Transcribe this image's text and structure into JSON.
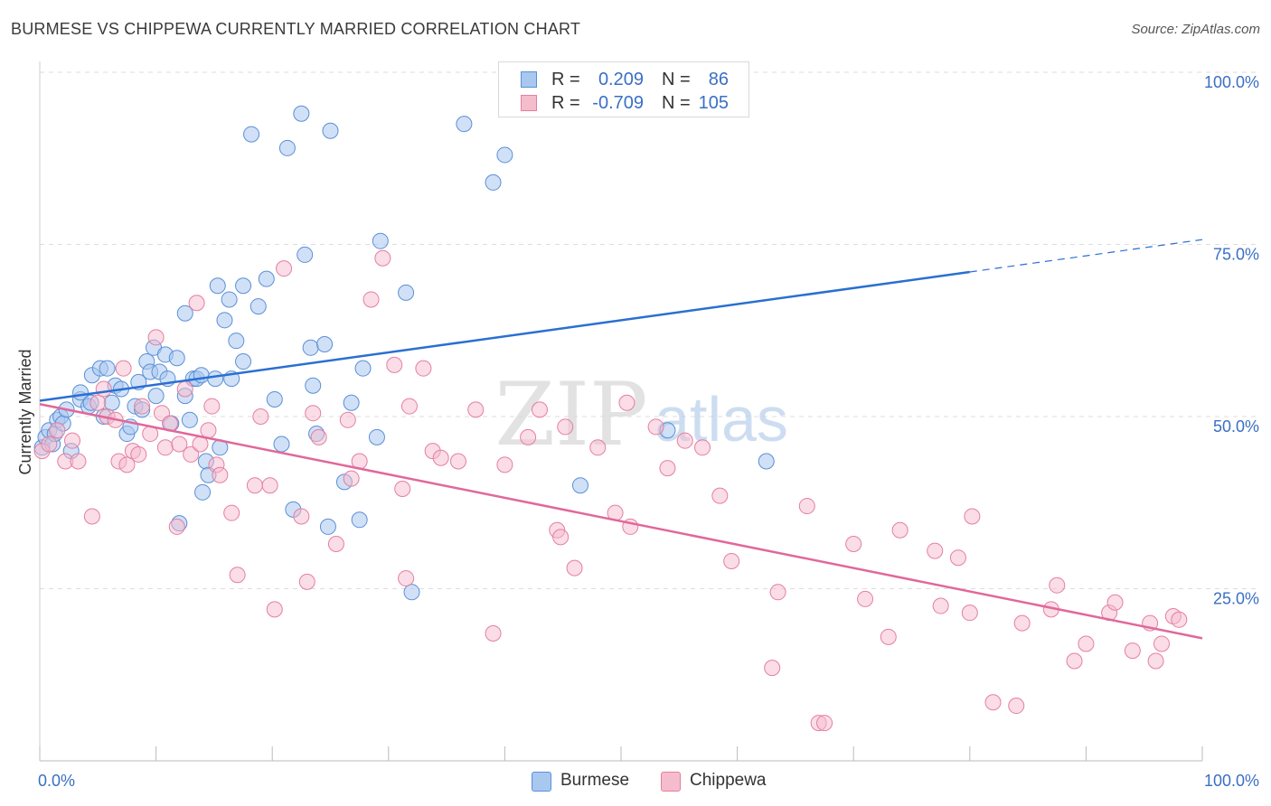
{
  "title": "BURMESE VS CHIPPEWA CURRENTLY MARRIED CORRELATION CHART",
  "source": "Source: ZipAtlas.com",
  "watermark": {
    "zip": "ZIP",
    "atlas": "atlas"
  },
  "legend": [
    {
      "r_label": "R =",
      "r_value": "0.209",
      "n_label": "N =",
      "n_value": "86"
    },
    {
      "r_label": "R =",
      "r_value": "-0.709",
      "n_label": "N =",
      "n_value": "105"
    }
  ],
  "colors": {
    "burmese_fill": "#a9c8f0",
    "burmese_stroke": "#5b8fd6",
    "burmese_line": "#2a6fd1",
    "chippewa_fill": "#f5bccd",
    "chippewa_stroke": "#e57fa0",
    "chippewa_line": "#e2679a",
    "value_text": "#3a6fc4",
    "grid": "#dddddd"
  },
  "chart_data": {
    "type": "scatter",
    "title": "BURMESE VS CHIPPEWA CURRENTLY MARRIED CORRELATION CHART",
    "xlabel": "",
    "ylabel": "Currently Married",
    "xlim": [
      0,
      100
    ],
    "ylim": [
      0,
      100
    ],
    "x_tick_labels": [
      "0.0%",
      "100.0%"
    ],
    "y_tick_values": [
      25,
      50,
      75,
      100
    ],
    "y_tick_labels": [
      "25.0%",
      "50.0%",
      "75.0%",
      "100.0%"
    ],
    "grid": "horizontal dashed",
    "legend_position": "top-center",
    "series": [
      {
        "name": "Burmese",
        "r": 0.209,
        "n": 86,
        "trend": {
          "x0": 0,
          "y0": 52.3,
          "x1": 80,
          "y1": 71.0,
          "dashed_to_x": 100,
          "dashed_to_y": 75.7
        },
        "points": [
          [
            0.2,
            45.5
          ],
          [
            0.5,
            47
          ],
          [
            0.8,
            48
          ],
          [
            1.1,
            46
          ],
          [
            1.3,
            47.5
          ],
          [
            1.5,
            49.5
          ],
          [
            1.8,
            50
          ],
          [
            2,
            49
          ],
          [
            2.3,
            51
          ],
          [
            2.7,
            45
          ],
          [
            3.5,
            52.5
          ],
          [
            3.5,
            53.5
          ],
          [
            4.2,
            51.5
          ],
          [
            4.4,
            52
          ],
          [
            4.5,
            56
          ],
          [
            5.2,
            57
          ],
          [
            5.5,
            50
          ],
          [
            5.8,
            57
          ],
          [
            6.2,
            52
          ],
          [
            6.5,
            54.5
          ],
          [
            7.0,
            54
          ],
          [
            7.5,
            47.5
          ],
          [
            7.8,
            48.5
          ],
          [
            8.2,
            51.5
          ],
          [
            8.5,
            55
          ],
          [
            8.8,
            51
          ],
          [
            9.2,
            58
          ],
          [
            9.5,
            56.5
          ],
          [
            9.8,
            60
          ],
          [
            10,
            53
          ],
          [
            10.3,
            56.5
          ],
          [
            10.8,
            59
          ],
          [
            11,
            55.5
          ],
          [
            11.3,
            49
          ],
          [
            11.8,
            58.5
          ],
          [
            12,
            34.5
          ],
          [
            12.5,
            53
          ],
          [
            12.5,
            65
          ],
          [
            12.9,
            49.5
          ],
          [
            13.2,
            55.5
          ],
          [
            13.5,
            55.5
          ],
          [
            13.9,
            56
          ],
          [
            14,
            39
          ],
          [
            14.3,
            43.5
          ],
          [
            14.5,
            41.5
          ],
          [
            15.1,
            55.5
          ],
          [
            15.3,
            69
          ],
          [
            15.5,
            45.5
          ],
          [
            15.9,
            64
          ],
          [
            16.3,
            67
          ],
          [
            16.5,
            55.5
          ],
          [
            16.9,
            61
          ],
          [
            17.5,
            69
          ],
          [
            17.5,
            58
          ],
          [
            18.2,
            91
          ],
          [
            18.8,
            66
          ],
          [
            19.5,
            70
          ],
          [
            20.2,
            52.5
          ],
          [
            20.8,
            46
          ],
          [
            21.3,
            89
          ],
          [
            21.8,
            36.5
          ],
          [
            22.5,
            94
          ],
          [
            22.8,
            73.5
          ],
          [
            23.3,
            60
          ],
          [
            23.5,
            54.5
          ],
          [
            23.8,
            47.5
          ],
          [
            24.5,
            60.5
          ],
          [
            24.8,
            34
          ],
          [
            25,
            91.5
          ],
          [
            26.2,
            40.5
          ],
          [
            26.8,
            52
          ],
          [
            27.5,
            35
          ],
          [
            27.8,
            57
          ],
          [
            29,
            47
          ],
          [
            29.3,
            75.5
          ],
          [
            31.5,
            68
          ],
          [
            32,
            24.5
          ],
          [
            36.5,
            92.5
          ],
          [
            39,
            84
          ],
          [
            40,
            88
          ],
          [
            46.5,
            40
          ],
          [
            54,
            48
          ],
          [
            62.5,
            43.5
          ]
        ]
      },
      {
        "name": "Chippewa",
        "r": -0.709,
        "n": 105,
        "trend": {
          "x0": 0,
          "y0": 51.8,
          "x1": 100,
          "y1": 17.8
        },
        "points": [
          [
            0.2,
            45
          ],
          [
            0.8,
            46
          ],
          [
            1.5,
            48
          ],
          [
            2.2,
            43.5
          ],
          [
            2.8,
            46.5
          ],
          [
            3.3,
            43.5
          ],
          [
            4.5,
            35.5
          ],
          [
            5,
            52
          ],
          [
            5.5,
            54
          ],
          [
            5.8,
            50
          ],
          [
            6.5,
            49.5
          ],
          [
            6.8,
            43.5
          ],
          [
            7.2,
            57
          ],
          [
            7.5,
            43
          ],
          [
            8,
            45
          ],
          [
            8.5,
            44.5
          ],
          [
            8.8,
            51.5
          ],
          [
            9.5,
            47.5
          ],
          [
            10,
            61.5
          ],
          [
            10.5,
            50.5
          ],
          [
            10.8,
            45.5
          ],
          [
            11.2,
            49
          ],
          [
            11.8,
            34
          ],
          [
            12,
            46
          ],
          [
            12.5,
            54
          ],
          [
            13,
            44.5
          ],
          [
            13.5,
            66.5
          ],
          [
            13.8,
            46
          ],
          [
            14.5,
            48
          ],
          [
            14.8,
            51.5
          ],
          [
            15.2,
            43
          ],
          [
            15.5,
            41.5
          ],
          [
            16.5,
            36
          ],
          [
            17,
            27
          ],
          [
            18.5,
            40
          ],
          [
            19,
            50
          ],
          [
            19.8,
            40
          ],
          [
            20.2,
            22
          ],
          [
            21,
            71.5
          ],
          [
            22.5,
            35.5
          ],
          [
            23,
            26
          ],
          [
            23.5,
            50.5
          ],
          [
            24,
            47
          ],
          [
            25.5,
            31.5
          ],
          [
            26.5,
            49.5
          ],
          [
            26.8,
            41
          ],
          [
            27.5,
            43.5
          ],
          [
            28.5,
            67
          ],
          [
            29.5,
            73
          ],
          [
            30.5,
            57.5
          ],
          [
            31.2,
            39.5
          ],
          [
            31.5,
            26.5
          ],
          [
            31.8,
            51.5
          ],
          [
            33,
            57
          ],
          [
            33.8,
            45
          ],
          [
            34.5,
            44
          ],
          [
            36,
            43.5
          ],
          [
            37.5,
            51
          ],
          [
            39,
            18.5
          ],
          [
            40,
            43
          ],
          [
            42,
            47
          ],
          [
            43,
            51
          ],
          [
            44.5,
            33.5
          ],
          [
            44.8,
            32.5
          ],
          [
            45.2,
            48.5
          ],
          [
            46,
            28
          ],
          [
            48,
            45.5
          ],
          [
            49.5,
            36
          ],
          [
            50.5,
            52
          ],
          [
            50.8,
            34
          ],
          [
            53,
            48.5
          ],
          [
            54,
            42.5
          ],
          [
            55.5,
            46.5
          ],
          [
            57,
            45.5
          ],
          [
            58.5,
            38.5
          ],
          [
            59.5,
            29
          ],
          [
            63,
            13.5
          ],
          [
            63.5,
            24.5
          ],
          [
            66,
            37
          ],
          [
            67,
            5.5
          ],
          [
            67.5,
            5.5
          ],
          [
            70,
            31.5
          ],
          [
            71,
            23.5
          ],
          [
            73,
            18
          ],
          [
            74,
            33.5
          ],
          [
            77,
            30.5
          ],
          [
            77.5,
            22.5
          ],
          [
            79,
            29.5
          ],
          [
            80,
            21.5
          ],
          [
            80.2,
            35.5
          ],
          [
            82,
            8.5
          ],
          [
            84,
            8
          ],
          [
            84.5,
            20
          ],
          [
            87,
            22
          ],
          [
            87.5,
            25.5
          ],
          [
            89,
            14.5
          ],
          [
            90,
            17
          ],
          [
            92,
            21.5
          ],
          [
            92.5,
            23
          ],
          [
            94,
            16
          ],
          [
            95.5,
            20
          ],
          [
            96,
            14.5
          ],
          [
            96.5,
            17
          ],
          [
            97.5,
            21
          ],
          [
            98,
            20.5
          ]
        ]
      }
    ]
  }
}
